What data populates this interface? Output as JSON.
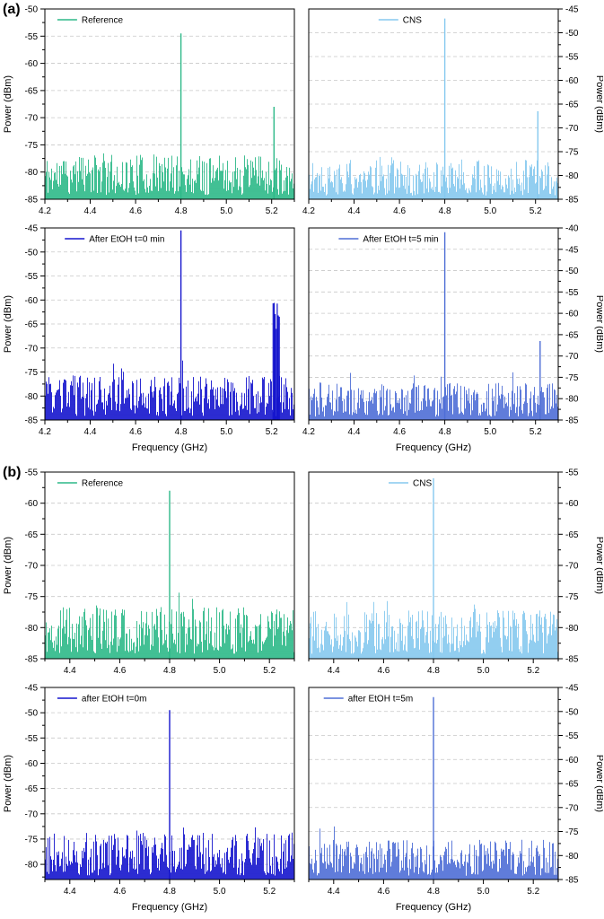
{
  "figure": {
    "background": "#ffffff"
  },
  "panels": [
    {
      "label": "(a)"
    },
    {
      "label": "(b)"
    }
  ],
  "colors": {
    "reference_green": "#2db988",
    "cns_light_blue": "#86c9ef",
    "etoh_t0_dark_blue": "#1515cd",
    "etoh_t5_royal_blue": "#4e6ed6",
    "gridline_gray": "#c8c8c8",
    "axis_black": "#000000"
  },
  "chart_data": [
    {
      "type": "line",
      "panel": "a",
      "position": "top-left",
      "legend": "Reference",
      "color": "#2db988",
      "legend_x": 0.05,
      "x": {
        "min": 4.2,
        "max": 5.3,
        "ticks": [
          4.2,
          4.4,
          4.6,
          4.8,
          5.0,
          5.2
        ],
        "label": "Frequency (GHz)",
        "show_label": false
      },
      "y": {
        "min": -85,
        "max": -50,
        "ticks": [
          -50,
          -55,
          -60,
          -65,
          -70,
          -75,
          -80,
          -85
        ],
        "label": "Power (dBm)",
        "side": "left"
      },
      "noise": {
        "floor": -85,
        "spread": 7.5,
        "seed": 11
      },
      "peaks": [
        {
          "freq": 4.8,
          "power": -54.5,
          "cluster": false
        },
        {
          "freq": 5.21,
          "power": -68,
          "cluster": false
        }
      ]
    },
    {
      "type": "line",
      "panel": "a",
      "position": "top-right",
      "legend": "CNS",
      "color": "#86c9ef",
      "legend_x": 0.28,
      "x": {
        "min": 4.2,
        "max": 5.3,
        "ticks": [
          4.2,
          4.4,
          4.6,
          4.8,
          5.0,
          5.2
        ],
        "label": "Frequency (GHz)",
        "show_label": false
      },
      "y": {
        "min": -85,
        "max": -45,
        "ticks": [
          -45,
          -50,
          -55,
          -60,
          -65,
          -70,
          -75,
          -80,
          -85
        ],
        "label": "Power (dBm)",
        "side": "right"
      },
      "noise": {
        "floor": -85,
        "spread": 7.5,
        "seed": 22
      },
      "peaks": [
        {
          "freq": 4.8,
          "power": -47,
          "cluster": false
        },
        {
          "freq": 5.21,
          "power": -66.5,
          "cluster": false
        }
      ]
    },
    {
      "type": "line",
      "panel": "a",
      "position": "bottom-left",
      "legend": "After EtOH t=0 min",
      "color": "#1515cd",
      "legend_x": 0.08,
      "x": {
        "min": 4.2,
        "max": 5.3,
        "ticks": [
          4.2,
          4.4,
          4.6,
          4.8,
          5.0,
          5.2
        ],
        "label": "Frequency (GHz)",
        "show_label": true
      },
      "y": {
        "min": -85,
        "max": -45,
        "ticks": [
          -45,
          -50,
          -55,
          -60,
          -65,
          -70,
          -75,
          -80,
          -85
        ],
        "label": "Power (dBm)",
        "side": "left"
      },
      "noise": {
        "floor": -85,
        "spread": 8.5,
        "seed": 33
      },
      "peaks": [
        {
          "freq": 4.8,
          "power": -45.5,
          "cluster": false
        },
        {
          "freq": 5.22,
          "power": -66,
          "cluster": true
        }
      ]
    },
    {
      "type": "line",
      "panel": "a",
      "position": "bottom-right",
      "legend": "After EtOH t=5 min",
      "color": "#4e6ed6",
      "legend_x": 0.12,
      "x": {
        "min": 4.2,
        "max": 5.3,
        "ticks": [
          4.2,
          4.4,
          4.6,
          4.8,
          5.0,
          5.2
        ],
        "label": "Frequency (GHz)",
        "show_label": true
      },
      "y": {
        "min": -85,
        "max": -40,
        "ticks": [
          -40,
          -45,
          -50,
          -55,
          -60,
          -65,
          -70,
          -75,
          -80,
          -85
        ],
        "label": "Power (dBm)",
        "side": "right"
      },
      "noise": {
        "floor": -85,
        "spread": 8,
        "seed": 44
      },
      "peaks": [
        {
          "freq": 4.8,
          "power": -41,
          "cluster": false
        },
        {
          "freq": 5.22,
          "power": -66.5,
          "cluster": false
        }
      ]
    },
    {
      "type": "line",
      "panel": "b",
      "position": "top-left",
      "legend": "Reference",
      "color": "#2db988",
      "legend_x": 0.05,
      "x": {
        "min": 4.3,
        "max": 5.3,
        "ticks": [
          4.4,
          4.6,
          4.8,
          5.0,
          5.2
        ],
        "label": "Frequency (GHz)",
        "show_label": false
      },
      "y": {
        "min": -85,
        "max": -55,
        "ticks": [
          -55,
          -60,
          -65,
          -70,
          -75,
          -80,
          -85
        ],
        "label": "Power (dBm)",
        "side": "left"
      },
      "noise": {
        "floor": -85,
        "spread": 7.5,
        "seed": 55
      },
      "peaks": [
        {
          "freq": 4.8,
          "power": -58,
          "cluster": false
        }
      ]
    },
    {
      "type": "line",
      "panel": "b",
      "position": "top-right",
      "legend": "CNS",
      "color": "#86c9ef",
      "legend_x": 0.32,
      "x": {
        "min": 4.3,
        "max": 5.3,
        "ticks": [
          4.4,
          4.6,
          4.8,
          5.0,
          5.2
        ],
        "label": "Frequency (GHz)",
        "show_label": false
      },
      "y": {
        "min": -85,
        "max": -55,
        "ticks": [
          -55,
          -60,
          -65,
          -70,
          -75,
          -80,
          -85
        ],
        "label": "Power (dBm)",
        "side": "right"
      },
      "noise": {
        "floor": -85,
        "spread": 7,
        "seed": 66
      },
      "peaks": [
        {
          "freq": 4.8,
          "power": -56,
          "cluster": false
        }
      ]
    },
    {
      "type": "line",
      "panel": "b",
      "position": "bottom-left",
      "legend": "after EtOH t=0m",
      "color": "#1515cd",
      "legend_x": 0.05,
      "x": {
        "min": 4.3,
        "max": 5.3,
        "ticks": [
          4.4,
          4.6,
          4.8,
          5.0,
          5.2
        ],
        "label": "Frequency (GHz)",
        "show_label": true
      },
      "y": {
        "min": -83,
        "max": -45,
        "ticks": [
          -45,
          -50,
          -55,
          -60,
          -65,
          -70,
          -75,
          -80
        ],
        "label": "Power (dBm)",
        "side": "left"
      },
      "noise": {
        "floor": -83,
        "spread": 8.5,
        "seed": 77
      },
      "peaks": [
        {
          "freq": 4.8,
          "power": -49.5,
          "cluster": false
        }
      ]
    },
    {
      "type": "line",
      "panel": "b",
      "position": "bottom-right",
      "legend": "after EtOH t=5m",
      "color": "#4e6ed6",
      "legend_x": 0.06,
      "x": {
        "min": 4.3,
        "max": 5.3,
        "ticks": [
          4.4,
          4.6,
          4.8,
          5.0,
          5.2
        ],
        "label": "Frequency (GHz)",
        "show_label": true
      },
      "y": {
        "min": -85,
        "max": -45,
        "ticks": [
          -45,
          -50,
          -55,
          -60,
          -65,
          -70,
          -75,
          -80,
          -85
        ],
        "label": "Power (dBm)",
        "side": "right"
      },
      "noise": {
        "floor": -85,
        "spread": 7.5,
        "seed": 88
      },
      "peaks": [
        {
          "freq": 4.8,
          "power": -47,
          "cluster": false
        }
      ]
    }
  ]
}
